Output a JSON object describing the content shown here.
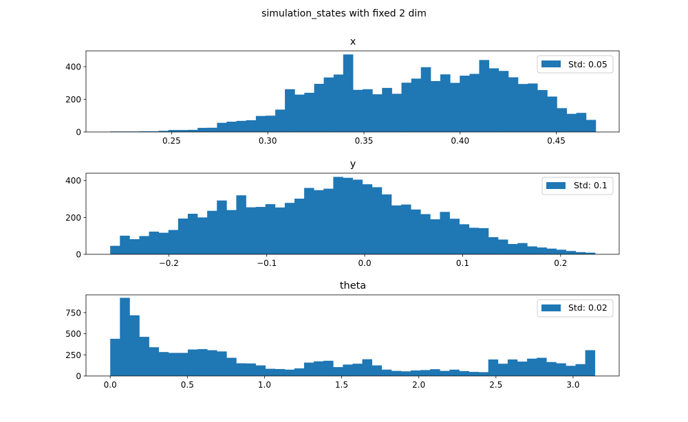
{
  "figure": {
    "suptitle": "simulation_states with fixed 2 dim",
    "bar_color": "#1f77b4"
  },
  "chart_data": [
    {
      "type": "bar",
      "title": "x",
      "legend": {
        "label": "Std: 0.05",
        "position": "upper-right"
      },
      "xlim": [
        0.2055,
        0.4827
      ],
      "ylim": [
        0,
        497
      ],
      "bin_edges": [
        0.218,
        0.2231,
        0.2281,
        0.2332,
        0.2382,
        0.2433,
        0.2483,
        0.2534,
        0.2584,
        0.2635,
        0.2685,
        0.2736,
        0.2786,
        0.2837,
        0.2887,
        0.2938,
        0.2988,
        0.3039,
        0.3089,
        0.314,
        0.319,
        0.3241,
        0.3291,
        0.3342,
        0.3392,
        0.3443,
        0.3493,
        0.3544,
        0.3594,
        0.3645,
        0.3695,
        0.3746,
        0.3796,
        0.3847,
        0.3897,
        0.3948,
        0.3998,
        0.4049,
        0.4099,
        0.415,
        0.42,
        0.4251,
        0.4301,
        0.4352,
        0.4402,
        0.4453,
        0.4503,
        0.4554,
        0.4604,
        0.4655,
        0.4705
      ],
      "counts": [
        3,
        3,
        3,
        4,
        4,
        7,
        12,
        12,
        13,
        25,
        26,
        56,
        63,
        68,
        72,
        98,
        100,
        137,
        262,
        229,
        240,
        295,
        334,
        352,
        475,
        258,
        262,
        231,
        270,
        234,
        302,
        327,
        397,
        312,
        353,
        301,
        345,
        356,
        441,
        390,
        374,
        335,
        294,
        297,
        257,
        217,
        146,
        111,
        117,
        74
      ],
      "xticks": [
        0.25,
        0.3,
        0.35,
        0.4,
        0.45
      ],
      "xtick_labels": [
        "0.25",
        "0.30",
        "0.35",
        "0.40",
        "0.45"
      ],
      "yticks": [
        0,
        200,
        400
      ],
      "ytick_labels": [
        "0",
        "200",
        "400"
      ]
    },
    {
      "type": "bar",
      "title": "y",
      "legend": {
        "label": "Std: 0.1",
        "position": "upper-right"
      },
      "xlim": [
        -0.2845,
        0.2598
      ],
      "ylim": [
        0,
        440
      ],
      "bin_edges": [
        -0.2598,
        -0.2499,
        -0.24,
        -0.2301,
        -0.2202,
        -0.2103,
        -0.2004,
        -0.1905,
        -0.1806,
        -0.1707,
        -0.1608,
        -0.1509,
        -0.141,
        -0.1311,
        -0.1212,
        -0.1113,
        -0.1014,
        -0.0915,
        -0.0816,
        -0.0717,
        -0.0618,
        -0.0519,
        -0.042,
        -0.0321,
        -0.0222,
        -0.0123,
        -0.0024,
        0.0075,
        0.0174,
        0.0273,
        0.0372,
        0.0471,
        0.057,
        0.0669,
        0.0768,
        0.0867,
        0.0966,
        0.1065,
        0.1164,
        0.1263,
        0.1362,
        0.1461,
        0.156,
        0.1659,
        0.1758,
        0.1857,
        0.1956,
        0.2055,
        0.2154,
        0.2253,
        0.2352
      ],
      "counts": [
        46,
        101,
        82,
        99,
        123,
        117,
        132,
        194,
        220,
        200,
        236,
        292,
        240,
        320,
        255,
        257,
        272,
        254,
        279,
        302,
        360,
        348,
        356,
        420,
        415,
        405,
        380,
        364,
        325,
        265,
        270,
        243,
        218,
        190,
        230,
        193,
        163,
        144,
        142,
        93,
        80,
        56,
        61,
        43,
        37,
        31,
        25,
        18,
        12,
        9
      ],
      "xticks": [
        -0.2,
        -0.1,
        0.0,
        0.1,
        0.2
      ],
      "xtick_labels": [
        "−0.2",
        "−0.1",
        "0.0",
        "0.1",
        "0.2"
      ],
      "yticks": [
        0,
        200,
        400
      ],
      "ytick_labels": [
        "0",
        "200",
        "400"
      ]
    },
    {
      "type": "bar",
      "title": "theta",
      "legend": {
        "label": "Std: 0.02",
        "position": "upper-right"
      },
      "xlim": [
        -0.157,
        3.299
      ],
      "ylim": [
        0,
        960
      ],
      "bin_edges": [
        0.0,
        0.0628,
        0.1257,
        0.1885,
        0.2513,
        0.3142,
        0.377,
        0.4398,
        0.5027,
        0.5655,
        0.6283,
        0.6912,
        0.754,
        0.8168,
        0.8796,
        0.9425,
        1.0053,
        1.0681,
        1.131,
        1.1938,
        1.2566,
        1.3195,
        1.3823,
        1.4451,
        1.508,
        1.5708,
        1.6336,
        1.6965,
        1.7593,
        1.8221,
        1.885,
        1.9478,
        2.0106,
        2.0735,
        2.1363,
        2.1991,
        2.2619,
        2.3248,
        2.3876,
        2.4504,
        2.5133,
        2.5761,
        2.6389,
        2.7018,
        2.7646,
        2.8274,
        2.8903,
        2.9531,
        3.0159,
        3.0788,
        3.1416
      ],
      "counts": [
        440,
        925,
        718,
        463,
        340,
        283,
        273,
        273,
        313,
        318,
        305,
        290,
        215,
        150,
        148,
        125,
        85,
        82,
        75,
        90,
        158,
        173,
        180,
        105,
        135,
        145,
        198,
        125,
        75,
        60,
        55,
        65,
        70,
        80,
        60,
        75,
        58,
        48,
        45,
        195,
        145,
        195,
        170,
        205,
        215,
        165,
        150,
        120,
        140,
        305
      ],
      "xticks": [
        0.0,
        0.5,
        1.0,
        1.5,
        2.0,
        2.5,
        3.0
      ],
      "xtick_labels": [
        "0.0",
        "0.5",
        "1.0",
        "1.5",
        "2.0",
        "2.5",
        "3.0"
      ],
      "yticks": [
        0,
        250,
        500,
        750
      ],
      "ytick_labels": [
        "0",
        "250",
        "500",
        "750"
      ]
    }
  ]
}
